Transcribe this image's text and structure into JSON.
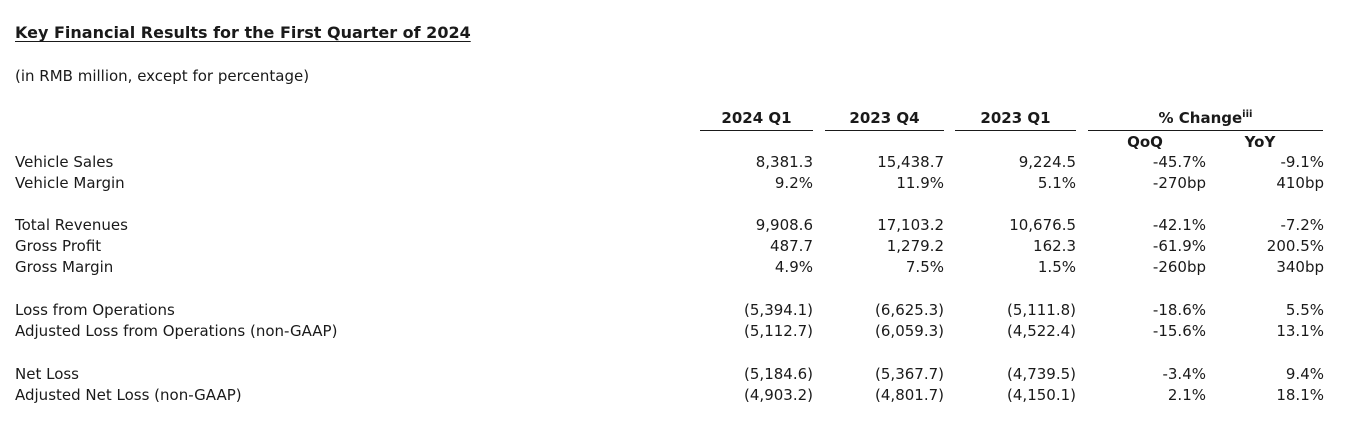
{
  "title": "Key Financial Results for the First Quarter of 2024",
  "subtitle": "(in RMB million, except for percentage)",
  "columns": {
    "q1_2024": "2024 Q1",
    "q4_2023": "2023 Q4",
    "q1_2023": "2023 Q1",
    "change": "% Change",
    "change_note": "iii",
    "qoq": "QoQ",
    "yoy": "YoY"
  },
  "rows": [
    {
      "label": "Vehicle Sales",
      "values": [
        "8,381.3",
        "15,438.7",
        "9,224.5",
        "-45.7%",
        "-9.1%"
      ]
    },
    {
      "label": "Vehicle Margin",
      "values": [
        "9.2%",
        "11.9%",
        "5.1%",
        "-270bp",
        "410bp"
      ]
    },
    {
      "label": "Total Revenues",
      "values": [
        "9,908.6",
        "17,103.2",
        "10,676.5",
        "-42.1%",
        "-7.2%"
      ]
    },
    {
      "label": "Gross Profit",
      "values": [
        "487.7",
        "1,279.2",
        "162.3",
        "-61.9%",
        "200.5%"
      ]
    },
    {
      "label": "Gross Margin",
      "values": [
        "4.9%",
        "7.5%",
        "1.5%",
        "-260bp",
        "340bp"
      ]
    },
    {
      "label": "Loss from Operations",
      "values": [
        "(5,394.1)",
        "(6,625.3)",
        "(5,111.8)",
        "-18.6%",
        "5.5%"
      ]
    },
    {
      "label": "Adjusted Loss from Operations (non-GAAP)",
      "values": [
        "(5,112.7)",
        "(6,059.3)",
        "(4,522.4)",
        "-15.6%",
        "13.1%"
      ]
    },
    {
      "label": "Net Loss",
      "values": [
        "(5,184.6)",
        "(5,367.7)",
        "(4,739.5)",
        "-3.4%",
        "9.4%"
      ]
    },
    {
      "label": "Adjusted Net Loss (non-GAAP)",
      "values": [
        "(4,903.2)",
        "(4,801.7)",
        "(4,150.1)",
        "2.1%",
        "18.1%"
      ]
    }
  ]
}
